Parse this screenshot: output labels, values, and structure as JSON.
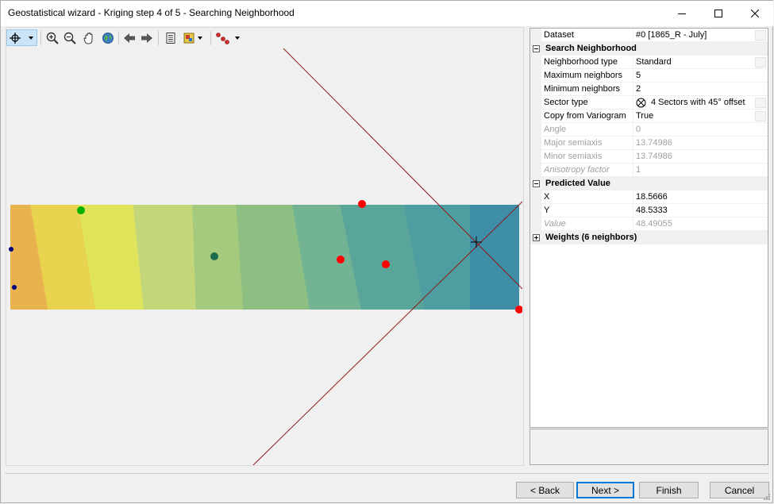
{
  "window": {
    "title": "Geostatistical wizard - Kriging step 4 of 5 - Searching Neighborhood"
  },
  "toolbar": {
    "tools": [
      {
        "name": "select-tool",
        "icon": "crosshair-icon",
        "selected": true
      },
      {
        "name": "zoom-in",
        "icon": "zoom-in-icon"
      },
      {
        "name": "zoom-out",
        "icon": "zoom-out-icon"
      },
      {
        "name": "pan",
        "icon": "hand-icon"
      },
      {
        "name": "full-extent",
        "icon": "globe-icon"
      },
      {
        "name": "back",
        "icon": "arrow-left-icon"
      },
      {
        "name": "forward",
        "icon": "arrow-right-icon"
      },
      {
        "name": "legend",
        "icon": "legend-icon"
      },
      {
        "name": "layer-options",
        "icon": "layers-icon"
      },
      {
        "name": "points",
        "icon": "points-icon"
      }
    ]
  },
  "map": {
    "surface_colors": [
      "#e8b24e",
      "#e8d24e",
      "#e0e45a",
      "#c3d77a",
      "#a5c97d",
      "#8dbf83",
      "#72b394",
      "#5aa59a",
      "#4e9ea1",
      "#3f8ea8"
    ],
    "neighbor_color": "#ff0000",
    "highlight_color": "#00b000",
    "other_point_colors": [
      "#1d6b4e",
      "#000080"
    ],
    "sector_line_color": "#8b1a1a"
  },
  "properties": {
    "dataset": {
      "label": "Dataset",
      "value": "#0 [1865_R - July]"
    },
    "search_neighborhood": {
      "header": "Search Neighborhood",
      "neighborhood_type": {
        "label": "Neighborhood type",
        "value": "Standard"
      },
      "max_neighbors": {
        "label": "Maximum neighbors",
        "value": "5"
      },
      "min_neighbors": {
        "label": "Minimum neighbors",
        "value": "2"
      },
      "sector_type": {
        "label": "Sector type",
        "value": "4 Sectors with 45° offset"
      },
      "copy_from_variogram": {
        "label": "Copy from Variogram",
        "value": "True"
      },
      "angle": {
        "label": "Angle",
        "value": "0"
      },
      "major_semiaxis": {
        "label": "Major semiaxis",
        "value": "13.74986"
      },
      "minor_semiaxis": {
        "label": "Minor semiaxis",
        "value": "13.74986"
      },
      "anisotropy_factor": {
        "label": "Anisotropy factor",
        "value": "1"
      }
    },
    "predicted_value": {
      "header": "Predicted Value",
      "x": {
        "label": "X",
        "value": "18.5666"
      },
      "y": {
        "label": "Y",
        "value": "48.5333"
      },
      "value": {
        "label": "Value",
        "value": "48.49055"
      }
    },
    "weights": {
      "header": "Weights (6 neighbors)"
    }
  },
  "buttons": {
    "back": "< Back",
    "next": "Next >",
    "finish": "Finish",
    "cancel": "Cancel"
  }
}
